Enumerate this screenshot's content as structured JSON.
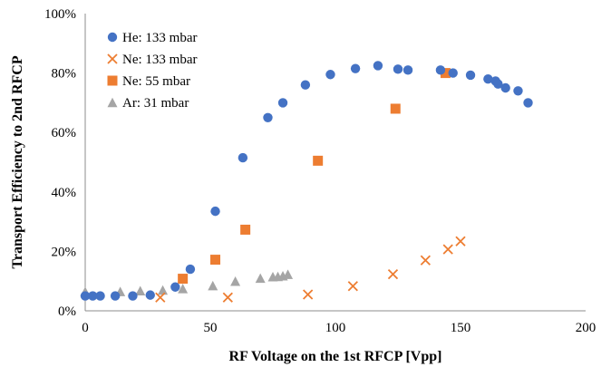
{
  "chart_data": {
    "type": "scatter",
    "xlabel": "RF  Voltage on the 1st RFCP [Vpp]",
    "ylabel": "Transport Efficiency to 2nd RFCP",
    "xlim": [
      0,
      200
    ],
    "ylim": [
      0,
      100
    ],
    "x_ticks": [
      0,
      50,
      100,
      150,
      200
    ],
    "y_ticks": [
      0,
      20,
      40,
      60,
      80,
      100
    ],
    "x_tick_labels": [
      "0",
      "50",
      "100",
      "150",
      "200"
    ],
    "y_tick_labels": [
      "0%",
      "20%",
      "40%",
      "60%",
      "80%",
      "100%"
    ],
    "grid": false,
    "legend_position": "top-left",
    "series": [
      {
        "name": "He: 133 mbar",
        "marker": "circle",
        "color": "#4472C4",
        "points": [
          [
            0,
            5
          ],
          [
            3,
            5
          ],
          [
            6,
            5
          ],
          [
            12,
            5
          ],
          [
            19,
            5
          ],
          [
            26,
            5.3
          ],
          [
            36,
            8
          ],
          [
            42,
            14
          ],
          [
            52,
            33.5
          ],
          [
            63,
            51.5
          ],
          [
            73,
            65
          ],
          [
            79,
            70
          ],
          [
            88,
            76
          ],
          [
            98,
            79.5
          ],
          [
            108,
            81.5
          ],
          [
            117,
            82.5
          ],
          [
            125,
            81.3
          ],
          [
            129,
            81
          ],
          [
            142,
            81
          ],
          [
            147,
            80
          ],
          [
            154,
            79.3
          ],
          [
            161,
            78
          ],
          [
            164,
            77.3
          ],
          [
            165,
            76.3
          ],
          [
            168,
            75
          ],
          [
            173,
            74
          ],
          [
            177,
            70
          ]
        ]
      },
      {
        "name": "Ne: 133 mbar",
        "marker": "x",
        "color": "#ED7D31",
        "points": [
          [
            30,
            4.5
          ],
          [
            57,
            4.5
          ],
          [
            89,
            5.5
          ],
          [
            107,
            8.3
          ],
          [
            123,
            12.3
          ],
          [
            136,
            17
          ],
          [
            145,
            20.7
          ],
          [
            150,
            23.4
          ]
        ]
      },
      {
        "name": "Ne: 55 mbar",
        "marker": "square",
        "color": "#ED7D31",
        "points": [
          [
            39,
            10.8
          ],
          [
            52,
            17.2
          ],
          [
            64,
            27.3
          ],
          [
            93,
            50.5
          ],
          [
            124,
            68
          ],
          [
            144,
            80
          ]
        ]
      },
      {
        "name": "Ar: 31 mbar",
        "marker": "triangle",
        "color": "#A5A5A5",
        "points": [
          [
            0,
            6.5
          ],
          [
            14,
            6.5
          ],
          [
            22,
            6.8
          ],
          [
            31,
            7
          ],
          [
            39,
            7.5
          ],
          [
            51,
            8.5
          ],
          [
            60,
            10
          ],
          [
            70,
            11
          ],
          [
            75,
            11.5
          ],
          [
            77,
            11.6
          ],
          [
            79,
            11.8
          ],
          [
            81,
            12.3
          ]
        ]
      }
    ]
  }
}
